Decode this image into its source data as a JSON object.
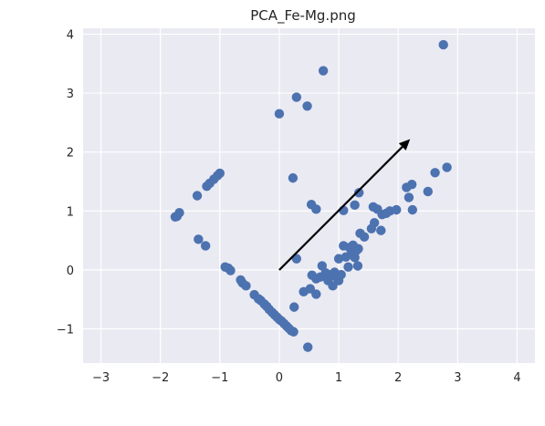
{
  "chart_data": {
    "type": "scatter",
    "title": "PCA_Fe-Mg.png",
    "xlabel": "",
    "ylabel": "",
    "xlim": [
      -3.3,
      4.3
    ],
    "ylim": [
      -1.58,
      4.1
    ],
    "xticks": [
      -3,
      -2,
      -1,
      0,
      1,
      2,
      3,
      4
    ],
    "yticks": [
      -1,
      0,
      1,
      2,
      3,
      4
    ],
    "xtick_labels": [
      "−3",
      "−2",
      "−1",
      "0",
      "1",
      "2",
      "3",
      "4"
    ],
    "ytick_labels": [
      "−1",
      "0",
      "1",
      "2",
      "3",
      "4"
    ],
    "grid": true,
    "background": "#eaeaf2",
    "point_color": "#4c72b0",
    "arrow": {
      "from": [
        0,
        0
      ],
      "to": [
        2.2,
        2.22
      ],
      "color": "#000000"
    },
    "points": [
      [
        2.76,
        3.82
      ],
      [
        0.74,
        3.38
      ],
      [
        0.29,
        2.93
      ],
      [
        0.47,
        2.78
      ],
      [
        0.0,
        2.65
      ],
      [
        0.23,
        1.56
      ],
      [
        0.54,
        1.11
      ],
      [
        0.62,
        1.03
      ],
      [
        1.08,
        1.01
      ],
      [
        1.27,
        1.1
      ],
      [
        1.34,
        1.31
      ],
      [
        1.58,
        1.07
      ],
      [
        1.65,
        1.03
      ],
      [
        1.73,
        0.94
      ],
      [
        1.8,
        0.96
      ],
      [
        1.86,
        1.0
      ],
      [
        1.97,
        1.02
      ],
      [
        2.14,
        1.4
      ],
      [
        2.23,
        1.45
      ],
      [
        2.18,
        1.23
      ],
      [
        2.24,
        1.02
      ],
      [
        2.5,
        1.33
      ],
      [
        2.62,
        1.65
      ],
      [
        2.82,
        1.74
      ],
      [
        -1.75,
        0.9
      ],
      [
        -1.72,
        0.91
      ],
      [
        -1.68,
        0.97
      ],
      [
        -1.38,
        1.26
      ],
      [
        -1.22,
        1.42
      ],
      [
        -1.17,
        1.47
      ],
      [
        -1.1,
        1.54
      ],
      [
        -1.04,
        1.6
      ],
      [
        -1.0,
        1.64
      ],
      [
        -1.36,
        0.52
      ],
      [
        -1.24,
        0.41
      ],
      [
        -0.91,
        0.05
      ],
      [
        -0.86,
        0.03
      ],
      [
        -0.82,
        -0.01
      ],
      [
        -0.65,
        -0.17
      ],
      [
        -0.62,
        -0.22
      ],
      [
        -0.56,
        -0.27
      ],
      [
        -0.42,
        -0.42
      ],
      [
        -0.35,
        -0.49
      ],
      [
        -0.31,
        -0.52
      ],
      [
        -0.25,
        -0.58
      ],
      [
        -0.21,
        -0.62
      ],
      [
        -0.17,
        -0.67
      ],
      [
        -0.12,
        -0.72
      ],
      [
        -0.08,
        -0.76
      ],
      [
        -0.04,
        -0.8
      ],
      [
        0.0,
        -0.84
      ],
      [
        0.04,
        -0.87
      ],
      [
        0.08,
        -0.91
      ],
      [
        0.12,
        -0.95
      ],
      [
        0.16,
        -0.99
      ],
      [
        0.2,
        -1.03
      ],
      [
        0.24,
        -1.05
      ],
      [
        0.25,
        -0.63
      ],
      [
        0.48,
        -1.31
      ],
      [
        0.29,
        0.19
      ],
      [
        0.41,
        -0.37
      ],
      [
        0.52,
        -0.32
      ],
      [
        0.62,
        -0.41
      ],
      [
        0.55,
        -0.09
      ],
      [
        0.62,
        -0.15
      ],
      [
        0.69,
        -0.12
      ],
      [
        0.72,
        0.07
      ],
      [
        0.78,
        -0.05
      ],
      [
        0.82,
        -0.18
      ],
      [
        0.86,
        -0.08
      ],
      [
        0.9,
        -0.27
      ],
      [
        0.93,
        -0.04
      ],
      [
        0.96,
        -0.12
      ],
      [
        1.0,
        -0.18
      ],
      [
        1.04,
        -0.08
      ],
      [
        1.0,
        0.19
      ],
      [
        1.08,
        0.41
      ],
      [
        1.12,
        0.22
      ],
      [
        1.16,
        0.05
      ],
      [
        1.18,
        0.38
      ],
      [
        1.21,
        0.27
      ],
      [
        1.24,
        0.42
      ],
      [
        1.27,
        0.21
      ],
      [
        1.3,
        0.33
      ],
      [
        1.32,
        0.07
      ],
      [
        1.33,
        0.36
      ],
      [
        1.36,
        0.62
      ],
      [
        1.43,
        0.56
      ],
      [
        1.55,
        0.7
      ],
      [
        1.6,
        0.8
      ],
      [
        1.71,
        0.67
      ]
    ]
  }
}
